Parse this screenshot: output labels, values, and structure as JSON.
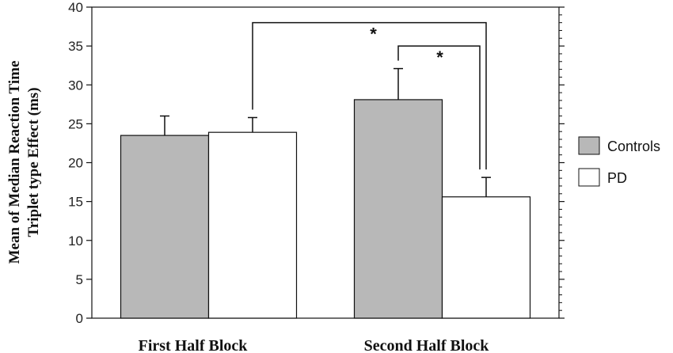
{
  "chart_data": {
    "type": "bar",
    "title": "",
    "xlabel": "",
    "ylabel": [
      "Mean of Median Reaction Time",
      "Triplet type Effect (ms)"
    ],
    "ylim": [
      0,
      40
    ],
    "yticks": [
      0,
      5,
      10,
      15,
      20,
      25,
      30,
      35,
      40
    ],
    "categories": [
      "First Half Block",
      "Second Half Block"
    ],
    "series": [
      {
        "name": "Controls",
        "values": [
          23.5,
          28.1
        ],
        "errors": [
          2.5,
          4.0
        ],
        "color": "#b8b8b8"
      },
      {
        "name": "PD",
        "values": [
          23.9,
          15.6
        ],
        "errors": [
          1.9,
          2.5
        ],
        "color": "#ffffff"
      }
    ],
    "legend": {
      "position": "right"
    },
    "grid": false,
    "annotations": [
      {
        "label": "*",
        "from": {
          "category": 0,
          "series": 1
        },
        "to": {
          "category": 1,
          "series": 1
        }
      },
      {
        "label": "*",
        "from": {
          "category": 1,
          "series": 0
        },
        "to": {
          "category": 1,
          "series": 1
        }
      }
    ]
  }
}
